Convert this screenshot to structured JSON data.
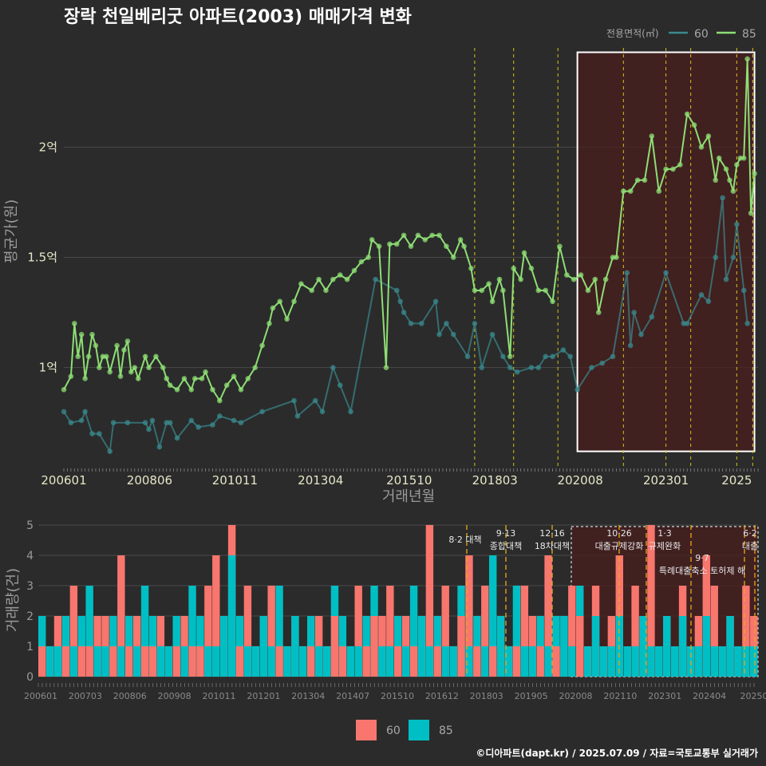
{
  "title": "장락 천일베리굿 아파트(2003) 매매가격 변화",
  "legend_top": {
    "title": "전용면적(㎡)",
    "items": [
      {
        "label": "60",
        "color": "#3a8a8e"
      },
      {
        "label": "85",
        "color": "#8ede74"
      }
    ]
  },
  "legend_bottom": {
    "items": [
      {
        "label": "60",
        "color": "#f8766d"
      },
      {
        "label": "85",
        "color": "#00bfc4"
      }
    ]
  },
  "credit": "©디아파트(dapt.kr) / 2025.07.09 / 자료=국토교통부 실거래가",
  "chart_data": [
    {
      "type": "line",
      "title": "장락 천일베리굿 아파트(2003) 매매가격 변화",
      "xlabel": "거래년월",
      "ylabel": "평균가(원)",
      "x_tick_labels": [
        "200601",
        "200806",
        "201011",
        "201304",
        "201510",
        "201803",
        "202008",
        "202301",
        "2025"
      ],
      "y_tick_labels": [
        "1억",
        "1.5억",
        "2억"
      ],
      "y_ticks": [
        1.0,
        1.5,
        2.0
      ],
      "ylim": [
        0.55,
        2.45
      ],
      "xlim": [
        2006.0,
        2025.6
      ],
      "highlight_region": [
        2020.5,
        2025.5
      ],
      "policy_lines": [
        2017.6,
        2018.7,
        2019.95,
        2021.8,
        2023.0,
        2023.7,
        2025.0,
        2025.45
      ],
      "series": [
        {
          "name": "60",
          "color": "#3a8a8e",
          "points": [
            [
              2006.0,
              0.8
            ],
            [
              2006.2,
              0.75
            ],
            [
              2006.5,
              0.76
            ],
            [
              2006.6,
              0.8
            ],
            [
              2006.8,
              0.7
            ],
            [
              2007.0,
              0.7
            ],
            [
              2007.3,
              0.62
            ],
            [
              2007.4,
              0.75
            ],
            [
              2007.8,
              0.75
            ],
            [
              2008.3,
              0.75
            ],
            [
              2008.4,
              0.72
            ],
            [
              2008.5,
              0.76
            ],
            [
              2008.7,
              0.64
            ],
            [
              2008.9,
              0.75
            ],
            [
              2009.0,
              0.75
            ],
            [
              2009.2,
              0.68
            ],
            [
              2009.6,
              0.76
            ],
            [
              2009.8,
              0.73
            ],
            [
              2010.2,
              0.74
            ],
            [
              2010.4,
              0.78
            ],
            [
              2010.8,
              0.76
            ],
            [
              2011.0,
              0.75
            ],
            [
              2011.6,
              0.8
            ],
            [
              2012.5,
              0.85
            ],
            [
              2012.6,
              0.78
            ],
            [
              2013.1,
              0.85
            ],
            [
              2013.3,
              0.8
            ],
            [
              2013.6,
              1.0
            ],
            [
              2013.8,
              0.92
            ],
            [
              2014.1,
              0.8
            ],
            [
              2014.8,
              1.4
            ],
            [
              2015.4,
              1.35
            ],
            [
              2015.5,
              1.3
            ],
            [
              2015.6,
              1.25
            ],
            [
              2015.8,
              1.2
            ],
            [
              2016.1,
              1.2
            ],
            [
              2016.5,
              1.3
            ],
            [
              2016.6,
              1.15
            ],
            [
              2016.8,
              1.2
            ],
            [
              2017.0,
              1.15
            ],
            [
              2017.4,
              1.05
            ],
            [
              2017.6,
              1.2
            ],
            [
              2017.8,
              1.0
            ],
            [
              2018.1,
              1.15
            ],
            [
              2018.4,
              1.05
            ],
            [
              2018.6,
              1.0
            ],
            [
              2018.8,
              0.98
            ],
            [
              2019.2,
              1.0
            ],
            [
              2019.4,
              1.0
            ],
            [
              2019.6,
              1.05
            ],
            [
              2019.8,
              1.05
            ],
            [
              2020.1,
              1.08
            ],
            [
              2020.3,
              1.05
            ],
            [
              2020.5,
              0.9
            ],
            [
              2020.9,
              1.0
            ],
            [
              2021.2,
              1.02
            ],
            [
              2021.5,
              1.05
            ],
            [
              2021.9,
              1.43
            ],
            [
              2022.0,
              1.1
            ],
            [
              2022.1,
              1.25
            ],
            [
              2022.3,
              1.15
            ],
            [
              2022.6,
              1.23
            ],
            [
              2023.0,
              1.43
            ],
            [
              2023.5,
              1.2
            ],
            [
              2023.6,
              1.2
            ],
            [
              2024.0,
              1.33
            ],
            [
              2024.2,
              1.3
            ],
            [
              2024.4,
              1.5
            ],
            [
              2024.6,
              1.77
            ],
            [
              2024.7,
              1.4
            ],
            [
              2024.9,
              1.5
            ],
            [
              2025.0,
              1.65
            ],
            [
              2025.2,
              1.35
            ],
            [
              2025.3,
              1.2
            ]
          ]
        },
        {
          "name": "85",
          "color": "#8ede74",
          "points": [
            [
              2006.0,
              0.9
            ],
            [
              2006.2,
              0.96
            ],
            [
              2006.3,
              1.2
            ],
            [
              2006.4,
              1.05
            ],
            [
              2006.5,
              1.15
            ],
            [
              2006.6,
              0.95
            ],
            [
              2006.7,
              1.05
            ],
            [
              2006.8,
              1.15
            ],
            [
              2006.9,
              1.1
            ],
            [
              2007.0,
              1.0
            ],
            [
              2007.1,
              1.05
            ],
            [
              2007.2,
              1.05
            ],
            [
              2007.3,
              0.98
            ],
            [
              2007.5,
              1.1
            ],
            [
              2007.6,
              0.96
            ],
            [
              2007.7,
              1.08
            ],
            [
              2007.8,
              1.12
            ],
            [
              2007.9,
              0.98
            ],
            [
              2008.0,
              1.0
            ],
            [
              2008.1,
              0.95
            ],
            [
              2008.3,
              1.05
            ],
            [
              2008.4,
              1.0
            ],
            [
              2008.6,
              1.05
            ],
            [
              2008.8,
              1.0
            ],
            [
              2008.9,
              0.95
            ],
            [
              2009.0,
              0.92
            ],
            [
              2009.2,
              0.9
            ],
            [
              2009.4,
              0.95
            ],
            [
              2009.6,
              0.9
            ],
            [
              2009.7,
              0.95
            ],
            [
              2009.9,
              0.95
            ],
            [
              2010.0,
              0.98
            ],
            [
              2010.2,
              0.9
            ],
            [
              2010.4,
              0.85
            ],
            [
              2010.6,
              0.92
            ],
            [
              2010.8,
              0.96
            ],
            [
              2011.0,
              0.9
            ],
            [
              2011.2,
              0.95
            ],
            [
              2011.4,
              1.0
            ],
            [
              2011.6,
              1.1
            ],
            [
              2011.8,
              1.2
            ],
            [
              2011.9,
              1.27
            ],
            [
              2012.1,
              1.3
            ],
            [
              2012.3,
              1.22
            ],
            [
              2012.5,
              1.3
            ],
            [
              2012.7,
              1.38
            ],
            [
              2013.0,
              1.35
            ],
            [
              2013.2,
              1.4
            ],
            [
              2013.4,
              1.35
            ],
            [
              2013.6,
              1.4
            ],
            [
              2013.8,
              1.42
            ],
            [
              2014.0,
              1.4
            ],
            [
              2014.2,
              1.44
            ],
            [
              2014.4,
              1.48
            ],
            [
              2014.6,
              1.5
            ],
            [
              2014.7,
              1.58
            ],
            [
              2014.9,
              1.55
            ],
            [
              2015.1,
              1.0
            ],
            [
              2015.2,
              1.56
            ],
            [
              2015.4,
              1.56
            ],
            [
              2015.6,
              1.6
            ],
            [
              2015.8,
              1.55
            ],
            [
              2016.0,
              1.6
            ],
            [
              2016.2,
              1.58
            ],
            [
              2016.4,
              1.6
            ],
            [
              2016.6,
              1.6
            ],
            [
              2016.8,
              1.55
            ],
            [
              2017.0,
              1.5
            ],
            [
              2017.2,
              1.58
            ],
            [
              2017.3,
              1.55
            ],
            [
              2017.5,
              1.45
            ],
            [
              2017.6,
              1.35
            ],
            [
              2017.8,
              1.35
            ],
            [
              2018.0,
              1.38
            ],
            [
              2018.1,
              1.3
            ],
            [
              2018.3,
              1.4
            ],
            [
              2018.4,
              1.35
            ],
            [
              2018.6,
              1.05
            ],
            [
              2018.7,
              1.45
            ],
            [
              2018.9,
              1.4
            ],
            [
              2019.0,
              1.52
            ],
            [
              2019.2,
              1.45
            ],
            [
              2019.4,
              1.35
            ],
            [
              2019.6,
              1.35
            ],
            [
              2019.8,
              1.3
            ],
            [
              2020.0,
              1.55
            ],
            [
              2020.2,
              1.42
            ],
            [
              2020.4,
              1.4
            ],
            [
              2020.6,
              1.42
            ],
            [
              2020.8,
              1.35
            ],
            [
              2021.0,
              1.4
            ],
            [
              2021.1,
              1.25
            ],
            [
              2021.3,
              1.4
            ],
            [
              2021.5,
              1.5
            ],
            [
              2021.6,
              1.5
            ],
            [
              2021.8,
              1.8
            ],
            [
              2022.0,
              1.8
            ],
            [
              2022.2,
              1.85
            ],
            [
              2022.4,
              1.85
            ],
            [
              2022.6,
              2.05
            ],
            [
              2022.8,
              1.8
            ],
            [
              2023.0,
              1.9
            ],
            [
              2023.2,
              1.9
            ],
            [
              2023.4,
              1.92
            ],
            [
              2023.6,
              2.15
            ],
            [
              2023.8,
              2.1
            ],
            [
              2024.0,
              2.0
            ],
            [
              2024.2,
              2.05
            ],
            [
              2024.4,
              1.85
            ],
            [
              2024.5,
              1.95
            ],
            [
              2024.7,
              1.9
            ],
            [
              2024.8,
              1.85
            ],
            [
              2024.9,
              1.8
            ],
            [
              2025.0,
              1.92
            ],
            [
              2025.1,
              1.95
            ],
            [
              2025.2,
              1.95
            ],
            [
              2025.3,
              2.4
            ],
            [
              2025.4,
              1.7
            ],
            [
              2025.5,
              1.88
            ]
          ]
        }
      ]
    },
    {
      "type": "bar",
      "xlabel": "",
      "ylabel": "거래량(건)",
      "ylim": [
        0,
        5
      ],
      "y_ticks": [
        0,
        1,
        2,
        3,
        4,
        5
      ],
      "x_tick_labels": [
        "200601",
        "200703",
        "200806",
        "200908",
        "201011",
        "201201",
        "201304",
        "201407",
        "201510",
        "201612",
        "201803",
        "201905",
        "202008",
        "202110",
        "202301",
        "202404",
        "20250"
      ],
      "policy_labels": [
        {
          "date": "8·2 대책",
          "line2": ""
        },
        {
          "date": "9·13",
          "line2": "종합대책"
        },
        {
          "date": "12·16",
          "line2": "18차대책"
        },
        {
          "date": "10·26",
          "line2": "대출규제강화"
        },
        {
          "date": "1·3",
          "line2": "규제완화"
        },
        {
          "date": "9·7",
          "line2": "특례대출축소 토허제 해"
        },
        {
          "date": "6·2",
          "line2": "대출"
        }
      ],
      "series": [
        {
          "name": "60",
          "color": "#f8766d",
          "values": [
            1,
            1,
            2,
            1,
            3,
            1,
            1,
            2,
            2,
            1,
            4,
            1,
            2,
            1,
            1,
            2,
            1,
            1,
            2,
            1,
            1,
            3,
            4,
            2,
            5,
            1,
            3,
            1,
            2,
            3,
            1,
            1,
            2,
            1,
            1,
            2,
            1,
            2,
            1,
            1,
            3,
            1,
            2,
            2,
            3,
            1,
            2,
            1,
            2,
            5,
            1,
            3,
            1,
            2,
            4,
            1,
            3,
            1,
            2,
            1,
            1,
            3,
            2,
            1,
            4,
            1,
            2,
            3,
            2,
            1,
            3,
            1,
            2,
            4,
            1,
            3,
            2,
            5,
            1,
            2,
            1,
            3,
            1,
            2,
            4,
            3,
            1,
            2,
            1,
            3,
            2
          ]
        },
        {
          "name": "85",
          "color": "#00bfc4",
          "values": [
            2,
            1,
            1,
            2,
            1,
            2,
            3,
            1,
            1,
            2,
            1,
            2,
            1,
            3,
            2,
            1,
            1,
            2,
            1,
            3,
            2,
            1,
            1,
            2,
            4,
            2,
            1,
            1,
            2,
            1,
            3,
            1,
            2,
            1,
            2,
            1,
            1,
            3,
            2,
            1,
            1,
            2,
            3,
            1,
            1,
            2,
            1,
            3,
            2,
            1,
            2,
            1,
            1,
            3,
            1,
            2,
            1,
            4,
            2,
            1,
            3,
            1,
            1,
            2,
            1,
            2,
            2,
            1,
            3,
            1,
            2,
            1,
            1,
            2,
            1,
            1,
            2,
            1,
            1,
            2,
            1,
            2,
            1,
            1,
            2,
            1,
            1,
            2,
            1,
            1,
            1
          ]
        }
      ]
    }
  ]
}
